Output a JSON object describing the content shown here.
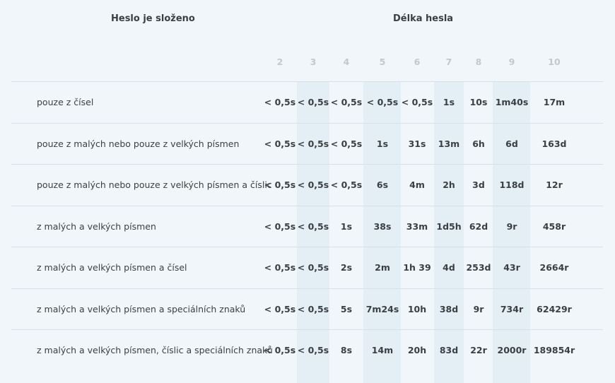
{
  "header": {
    "composition_title": "Heslo je složeno",
    "length_title": "Délka hesla"
  },
  "lengths": [
    "2",
    "3",
    "4",
    "5",
    "6",
    "7",
    "8",
    "9",
    "10"
  ],
  "rows": [
    {
      "label": "pouze z čísel",
      "values": [
        "< 0,5s",
        "< 0,5s",
        "< 0,5s",
        "< 0,5s",
        "< 0,5s",
        "1s",
        "10s",
        "1m40s",
        "17m"
      ]
    },
    {
      "label": "pouze z malých nebo pouze z velkých písmen",
      "values": [
        "< 0,5s",
        "< 0,5s",
        "< 0,5s",
        "1s",
        "31s",
        "13m",
        "6h",
        "6d",
        "163d"
      ]
    },
    {
      "label": "pouze z malých nebo pouze z velkých písmen a číslic",
      "values": [
        "< 0,5s",
        "< 0,5s",
        "< 0,5s",
        "6s",
        "4m",
        "2h",
        "3d",
        "118d",
        "12r"
      ]
    },
    {
      "label": "z malých a velkých písmen",
      "values": [
        "< 0,5s",
        "< 0,5s",
        "1s",
        "38s",
        "33m",
        "1d5h",
        "62d",
        "9r",
        "458r"
      ]
    },
    {
      "label": "z malých a velkých písmen a čísel",
      "values": [
        "< 0,5s",
        "< 0,5s",
        "2s",
        "2m",
        "1h 39",
        "4d",
        "253d",
        "43r",
        "2664r"
      ]
    },
    {
      "label": "z malých a velkých písmen a speciálních znaků",
      "values": [
        "< 0,5s",
        "< 0,5s",
        "5s",
        "7m24s",
        "10h",
        "38d",
        "9r",
        "734r",
        "62429r"
      ]
    },
    {
      "label": "z malých a velkých písmen, číslic a speciálních znaků",
      "values": [
        "< 0,5s",
        "< 0,5s",
        "8s",
        "14m",
        "20h",
        "83d",
        "22r",
        "2000r",
        "189854r"
      ]
    }
  ]
}
